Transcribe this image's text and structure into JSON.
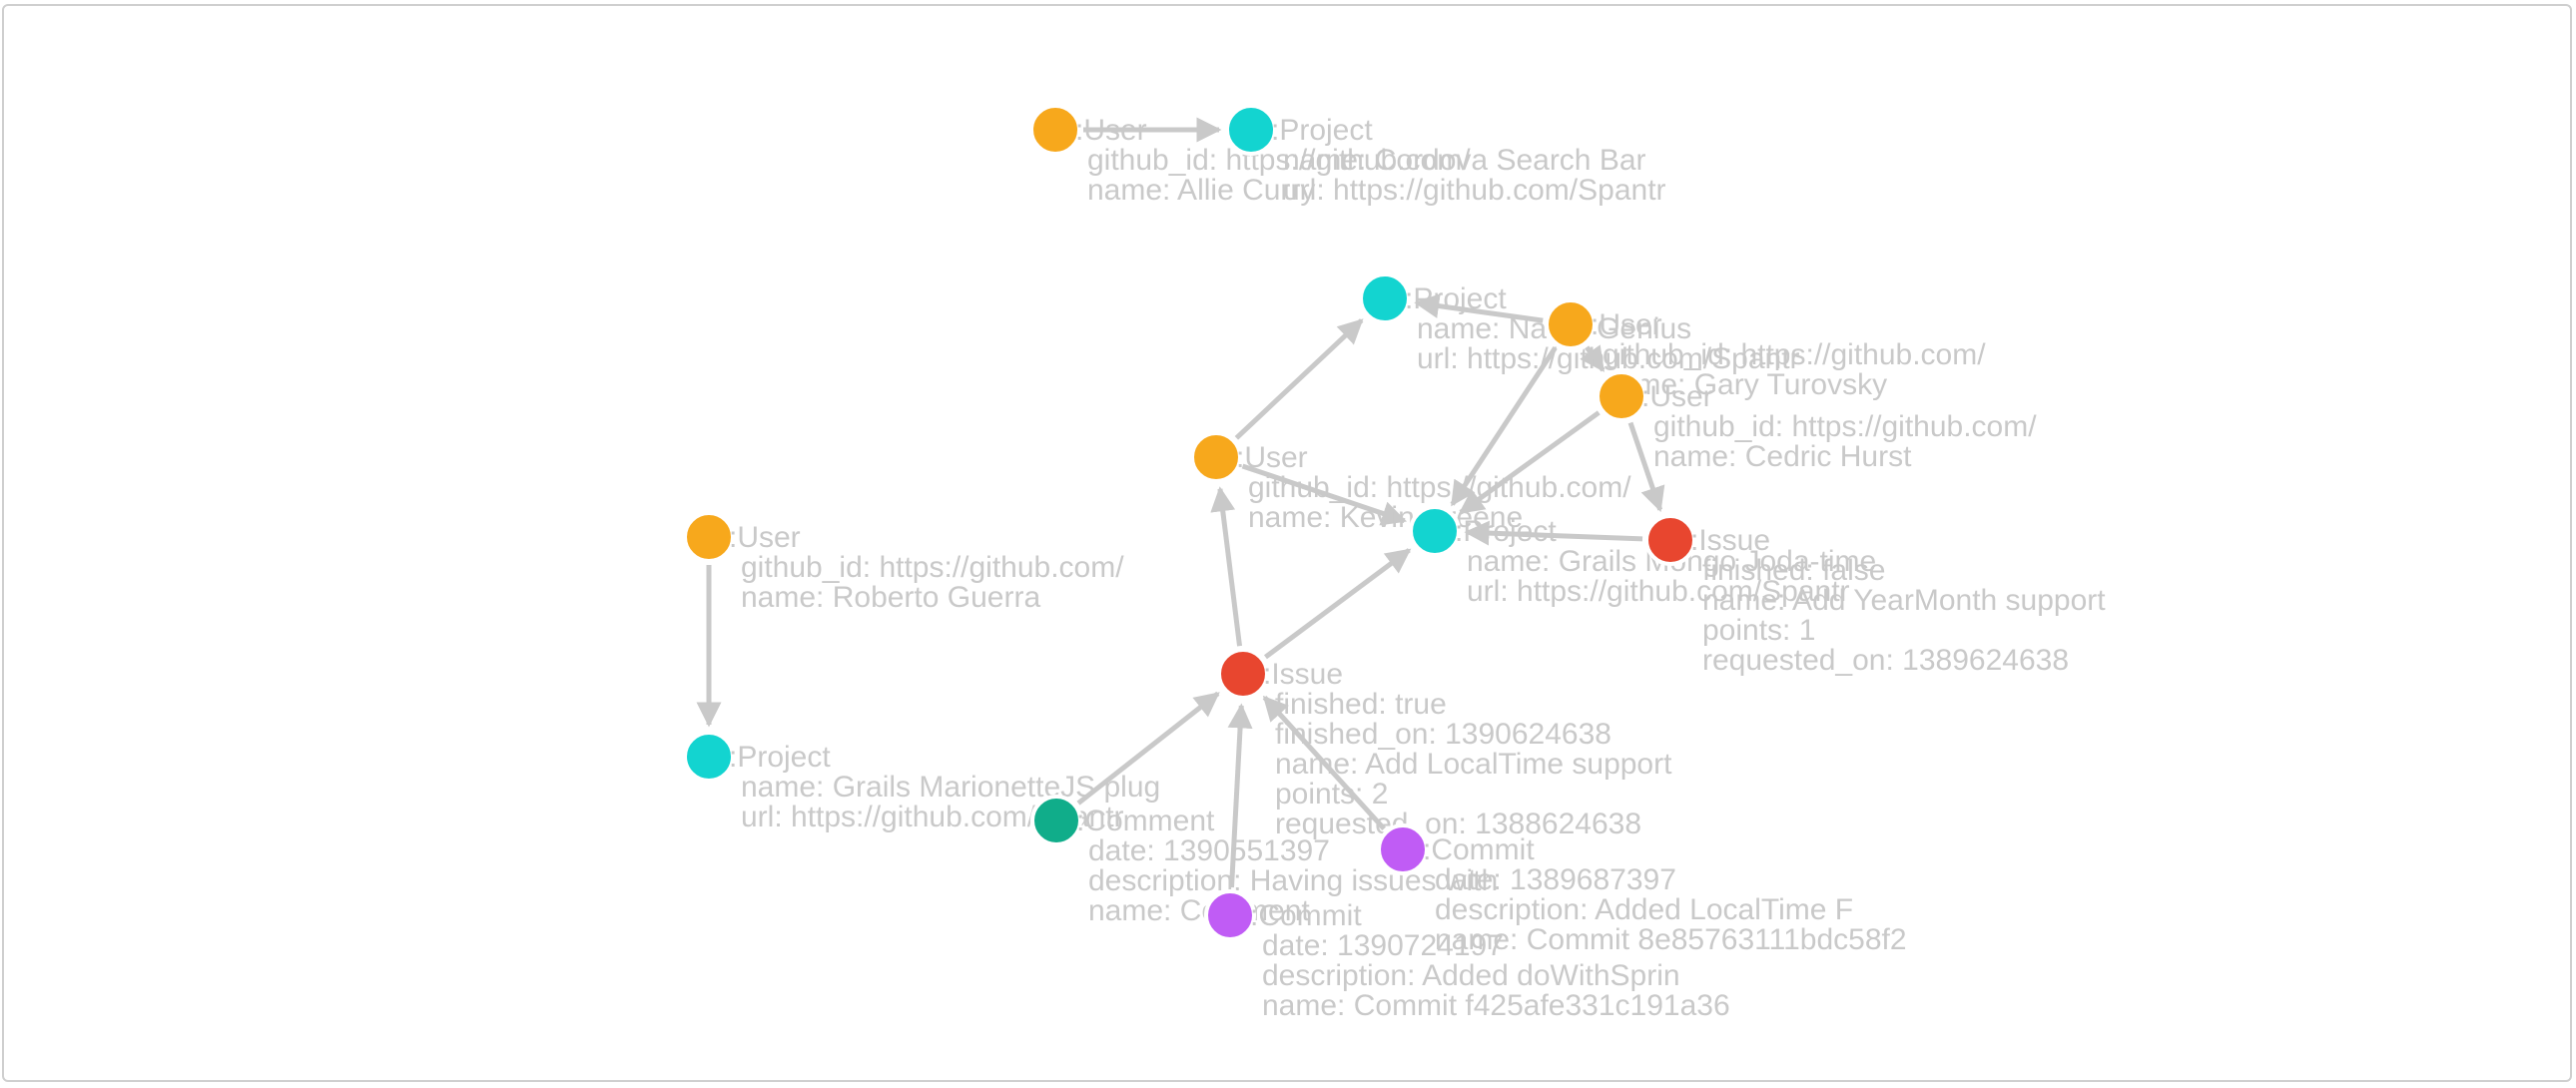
{
  "colors": {
    "User": "#f7a81c",
    "Project": "#13d4d0",
    "Issue": "#e8462f",
    "Comment": "#10ad8a",
    "Commit": "#c05cf5",
    "edge": "#c9c9c9",
    "label": "#c9c9c9"
  },
  "nodes": [
    {
      "id": "u_allie",
      "type": "User",
      "lines": [
        ":User",
        "github_id: https://github.com/",
        "name: Allie Curry"
      ]
    },
    {
      "id": "p_cordova",
      "type": "Project",
      "lines": [
        ":Project",
        "name: Cordova Search Bar",
        "url: https://github.com/Spantr"
      ]
    },
    {
      "id": "p_namegenius",
      "type": "Project",
      "lines": [
        ":Project",
        "name: Name Genius",
        "url: https://github.com/Spantr"
      ]
    },
    {
      "id": "u_gary",
      "type": "User",
      "lines": [
        ":User",
        "github_id: https://github.com/",
        "name: Gary Turovsky"
      ]
    },
    {
      "id": "u_cedric",
      "type": "User",
      "lines": [
        ":User",
        "github_id: https://github.com/",
        "name: Cedric Hurst"
      ]
    },
    {
      "id": "u_kevin",
      "type": "User",
      "lines": [
        ":User",
        "github_id: https://github.com/",
        "name: Kevin Greene"
      ]
    },
    {
      "id": "p_grailsmongo",
      "type": "Project",
      "lines": [
        ":Project",
        "name: Grails Mongo Joda-time",
        "url: https://github.com/Spantr"
      ]
    },
    {
      "id": "i_yearmonth",
      "type": "Issue",
      "lines": [
        ":Issue",
        "finished: false",
        "name: Add YearMonth support",
        "points: 1",
        "requested_on: 1389624638"
      ]
    },
    {
      "id": "u_roberto",
      "type": "User",
      "lines": [
        ":User",
        "github_id: https://github.com/",
        "name: Roberto Guerra"
      ]
    },
    {
      "id": "p_marionette",
      "type": "Project",
      "lines": [
        ":Project",
        "name: Grails MarionetteJS plug",
        "url: https://github.com/Spantr"
      ]
    },
    {
      "id": "i_localtime",
      "type": "Issue",
      "lines": [
        ":Issue",
        "finished: true",
        "finished_on: 1390624638",
        "name: Add LocalTime support",
        "points: 2",
        "requested_on: 1388624638"
      ]
    },
    {
      "id": "c_comment",
      "type": "Comment",
      "lines": [
        ":Comment",
        "date: 1390551397",
        "description: Having issues with",
        "name: Comment"
      ]
    },
    {
      "id": "cm_8e85",
      "type": "Commit",
      "lines": [
        ":Commit",
        "date: 1389687397",
        "description: Added LocalTime F",
        "name: Commit 8e85763111bdc58f2"
      ]
    },
    {
      "id": "cm_f425",
      "type": "Commit",
      "lines": [
        ":Commit",
        "date: 1390724197",
        "description: Added doWithSprin",
        "name: Commit f425afe331c191a36"
      ]
    }
  ],
  "edges": [
    {
      "from": "u_allie",
      "to": "p_cordova"
    },
    {
      "from": "u_kevin",
      "to": "p_namegenius"
    },
    {
      "from": "u_gary",
      "to": "p_namegenius"
    },
    {
      "from": "u_gary",
      "to": "u_cedric"
    },
    {
      "from": "u_gary",
      "to": "p_grailsmongo"
    },
    {
      "from": "u_cedric",
      "to": "p_grailsmongo"
    },
    {
      "from": "u_cedric",
      "to": "i_yearmonth"
    },
    {
      "from": "u_kevin",
      "to": "p_grailsmongo"
    },
    {
      "from": "i_yearmonth",
      "to": "p_grailsmongo"
    },
    {
      "from": "u_roberto",
      "to": "p_marionette"
    },
    {
      "from": "i_localtime",
      "to": "u_kevin"
    },
    {
      "from": "i_localtime",
      "to": "p_grailsmongo"
    },
    {
      "from": "c_comment",
      "to": "i_localtime"
    },
    {
      "from": "cm_8e85",
      "to": "i_localtime"
    },
    {
      "from": "cm_f425",
      "to": "i_localtime"
    }
  ]
}
